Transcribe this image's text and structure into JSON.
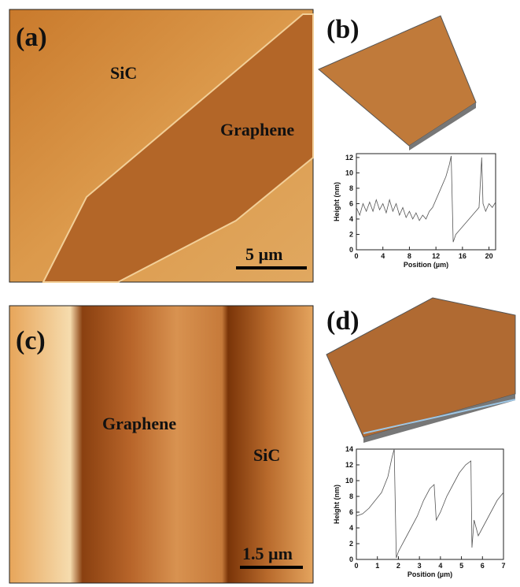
{
  "panels": [
    {
      "label": "(a)",
      "texts": [
        "SiC",
        "Graphene"
      ],
      "scale_bar": "5 µm"
    },
    {
      "label": "(b)"
    },
    {
      "label": "(c)",
      "texts": [
        "Graphene",
        "SiC"
      ],
      "scale_bar": "1.5 µm"
    },
    {
      "label": "(d)"
    }
  ],
  "chart_data": [
    {
      "type": "line",
      "xlabel": "Position (µm)",
      "ylabel": "Height (nm)",
      "color": "#555555",
      "x": [
        0,
        0.5,
        1,
        1.5,
        2,
        2.5,
        3,
        3.5,
        4,
        4.5,
        5,
        5.5,
        6,
        6.5,
        7,
        7.5,
        8,
        8.5,
        9,
        9.5,
        10,
        10.5,
        11,
        11.5,
        12,
        12.5,
        13,
        13.5,
        14,
        14.3,
        14.6,
        15,
        15.5,
        16,
        16.5,
        17,
        17.5,
        18,
        18.5,
        18.9,
        19.1,
        19.5,
        20,
        20.5,
        21
      ],
      "values": [
        5.5,
        4.5,
        6,
        5,
        6.2,
        5,
        6.5,
        5.2,
        6,
        4.8,
        6.5,
        5,
        6,
        4.5,
        5.5,
        4.2,
        5,
        4,
        4.8,
        3.8,
        4.5,
        4,
        5,
        5.5,
        6.5,
        7.5,
        8.5,
        9.5,
        11,
        12.2,
        1,
        2,
        2.5,
        3,
        3.5,
        4,
        4.5,
        5,
        5.5,
        12,
        6,
        5,
        6,
        5.5,
        6.2
      ],
      "xlim": [
        0,
        21
      ],
      "xticks": [
        0,
        4,
        8,
        12,
        16,
        20
      ],
      "ylim": [
        0,
        12.5
      ],
      "yticks": [
        0,
        2,
        4,
        6,
        8,
        10,
        12
      ]
    },
    {
      "type": "line",
      "xlabel": "Position (µm)",
      "ylabel": "Height (nm)",
      "color": "#555555",
      "x": [
        0,
        0.3,
        0.6,
        0.9,
        1.2,
        1.5,
        1.7,
        1.8,
        1.9,
        2,
        2.3,
        2.6,
        2.9,
        3.2,
        3.5,
        3.7,
        3.8,
        4,
        4.3,
        4.6,
        4.9,
        5.2,
        5.45,
        5.5,
        5.6,
        5.8,
        6.1,
        6.4,
        6.7,
        7
      ],
      "values": [
        5.5,
        5.8,
        6.5,
        7.5,
        8.5,
        10.5,
        13,
        14,
        0.2,
        1,
        2.5,
        4,
        5.5,
        7.5,
        9,
        9.5,
        5,
        6,
        8,
        9.5,
        11,
        12,
        12.5,
        1.5,
        5,
        3,
        4.5,
        6,
        7.5,
        8.5
      ],
      "xlim": [
        0,
        7
      ],
      "xticks": [
        0,
        1,
        2,
        3,
        4,
        5,
        6,
        7
      ],
      "ylim": [
        0,
        14
      ],
      "yticks": [
        0,
        2,
        4,
        6,
        8,
        10,
        12,
        14
      ]
    }
  ]
}
